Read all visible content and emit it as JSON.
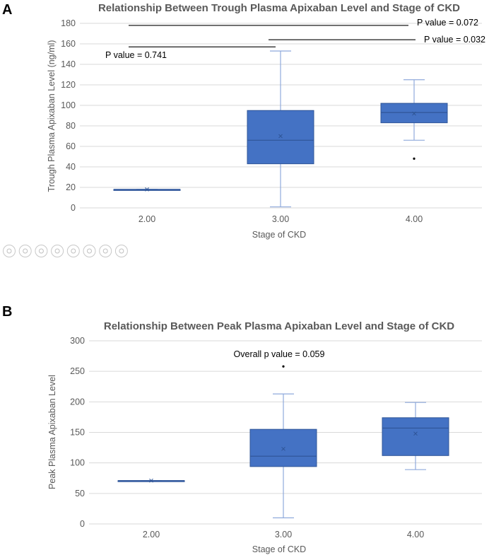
{
  "chart_data": [
    {
      "type": "box",
      "panel_letter": "A",
      "title": "Relationship Between Trough Plasma Apixaban Level and Stage of CKD",
      "xlabel": "Stage of CKD",
      "ylabel": "Trough Plasma Apixaban Level (ng/ml)",
      "ylim": [
        0,
        180
      ],
      "yticks": [
        0,
        20,
        40,
        60,
        80,
        100,
        120,
        140,
        160,
        180
      ],
      "grid": true,
      "categories": [
        "2.00",
        "3.00",
        "4.00"
      ],
      "boxes": [
        {
          "min": 18,
          "q1": 18,
          "median": 18,
          "q3": 18,
          "max": 18,
          "mean": 18,
          "outliers": []
        },
        {
          "min": 1,
          "q1": 43,
          "median": 66,
          "q3": 95,
          "max": 153,
          "mean": 70,
          "outliers": []
        },
        {
          "min": 66,
          "q1": 83,
          "median": 93,
          "q3": 102,
          "max": 125,
          "mean": 92,
          "outliers": [
            48
          ]
        }
      ],
      "comparisons": [
        {
          "from": "2.00",
          "to": "4.00",
          "y": 178,
          "label": "P value = 0.072"
        },
        {
          "from": "3.00",
          "to": "4.00",
          "y": 164,
          "label": "P value = 0.032"
        },
        {
          "from": "2.00",
          "to": "3.00",
          "y": 157,
          "label": "P value = 0.741"
        }
      ]
    },
    {
      "type": "box",
      "panel_letter": "B",
      "title": "Relationship Between Peak Plasma Apixaban Level and Stage of CKD",
      "xlabel": "Stage of CKD",
      "ylabel": "Peak Plasma Apixaban Level",
      "ylim": [
        0,
        300
      ],
      "yticks": [
        0,
        50,
        100,
        150,
        200,
        250,
        300
      ],
      "grid": true,
      "categories": [
        "2.00",
        "3.00",
        "4.00"
      ],
      "boxes": [
        {
          "min": 71,
          "q1": 71,
          "median": 71,
          "q3": 71,
          "max": 71,
          "mean": 71,
          "outliers": []
        },
        {
          "min": 10,
          "q1": 94,
          "median": 111,
          "q3": 155,
          "max": 213,
          "mean": 123,
          "outliers": [
            258
          ]
        },
        {
          "min": 89,
          "q1": 112,
          "median": 157,
          "q3": 174,
          "max": 199,
          "mean": 148,
          "outliers": []
        }
      ],
      "annotation": "Overall p value = 0.059"
    }
  ],
  "colors": {
    "box_fill": "#4472c4",
    "box_stroke": "#2f5597",
    "whisker": "#8faadc",
    "median": "#2f5597"
  },
  "toolbar": {
    "icons": [
      "previous-icon",
      "next-icon",
      "pen-icon",
      "copy-icon",
      "zoom-icon",
      "slides-icon",
      "video-icon",
      "more-icon"
    ]
  }
}
